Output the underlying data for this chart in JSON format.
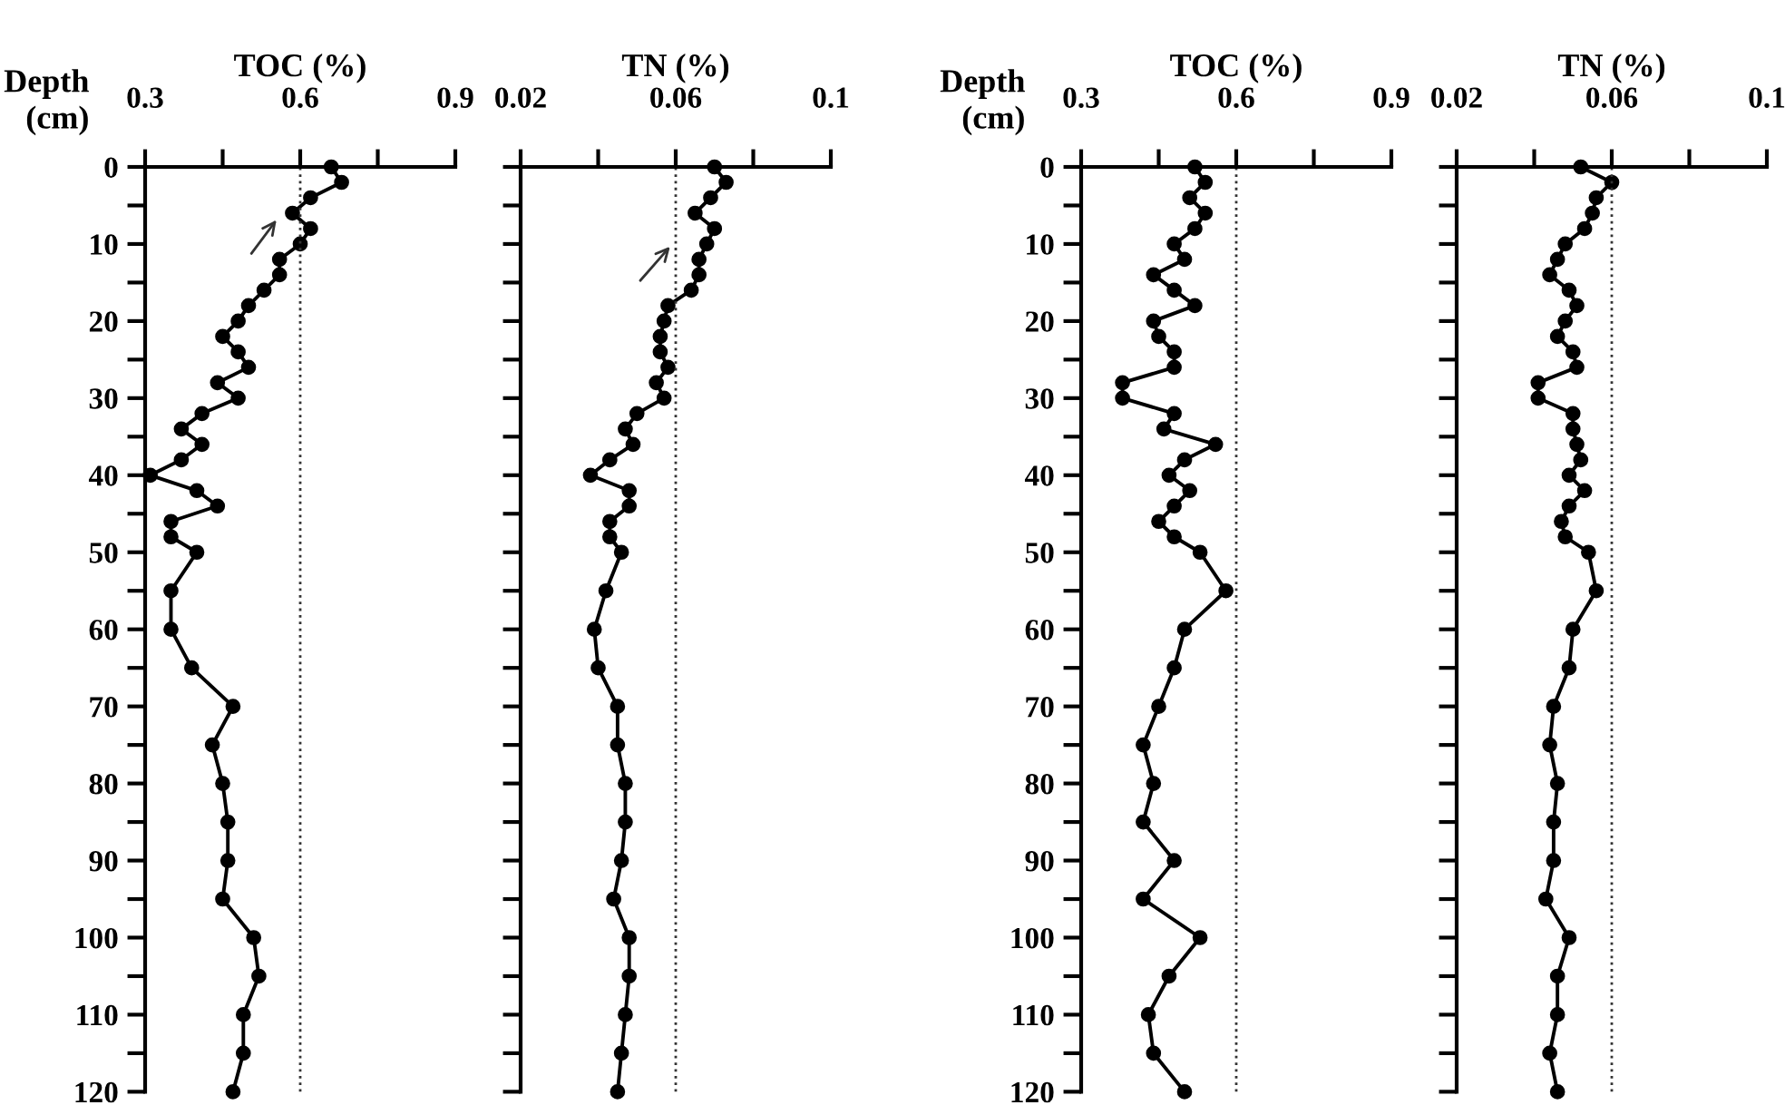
{
  "chart_data": [
    {
      "type": "line",
      "title": "TOC (%)",
      "ylabel": "Depth\n(cm)",
      "marker": "circle",
      "line_style": "solid",
      "grid": false,
      "legend": false,
      "xlim": [
        0.3,
        0.9
      ],
      "xticks": [
        0.3,
        {
          "value": 0.45,
          "label": null
        },
        0.6,
        {
          "value": 0.75,
          "label": null
        },
        0.9
      ],
      "ylim": [
        120,
        0
      ],
      "yticks": [
        0,
        {
          "value": 5,
          "label": null
        },
        10,
        {
          "value": 15,
          "label": null
        },
        20,
        {
          "value": 25,
          "label": null
        },
        30,
        {
          "value": 35,
          "label": null
        },
        40,
        {
          "value": 45,
          "label": null
        },
        50,
        {
          "value": 55,
          "label": null
        },
        60,
        {
          "value": 65,
          "label": null
        },
        70,
        {
          "value": 75,
          "label": null
        },
        80,
        {
          "value": 85,
          "label": null
        },
        90,
        {
          "value": 95,
          "label": null
        },
        100,
        {
          "value": 105,
          "label": null
        },
        110,
        {
          "value": 115,
          "label": null
        },
        120
      ],
      "ref_lines": [
        {
          "axis": "x",
          "value": 0.6,
          "line_style": "dotted",
          "color": "#333333"
        }
      ],
      "series": [
        {
          "color": "#000000",
          "x": [
            0.66,
            0.68,
            0.62,
            0.585,
            0.62,
            0.6,
            0.56,
            0.56,
            0.53,
            0.5,
            0.48,
            0.45,
            0.48,
            0.5,
            0.44,
            0.48,
            0.41,
            0.37,
            0.41,
            0.37,
            0.31,
            0.4,
            0.44,
            0.35,
            0.35,
            0.4,
            0.35,
            0.35,
            0.39,
            0.47,
            0.43,
            0.45,
            0.46,
            0.46,
            0.45,
            0.51,
            0.52,
            0.49,
            0.49,
            0.47
          ],
          "values": [
            0,
            2,
            4,
            6,
            8,
            10,
            12,
            14,
            16,
            18,
            20,
            22,
            24,
            26,
            28,
            30,
            32,
            34,
            36,
            38,
            40,
            42,
            44,
            46,
            48,
            50,
            55,
            60,
            65,
            70,
            75,
            80,
            85,
            90,
            95,
            100,
            105,
            110,
            115,
            120
          ]
        }
      ]
    },
    {
      "type": "line",
      "title": "TN (%)",
      "marker": "circle",
      "line_style": "solid",
      "grid": false,
      "legend": false,
      "tick_labels": "x",
      "xlim": [
        0.02,
        0.1
      ],
      "xticks": [
        0.02,
        {
          "value": 0.04,
          "label": null
        },
        0.06,
        {
          "value": 0.08,
          "label": null
        },
        0.1
      ],
      "ylim": [
        120,
        0
      ],
      "yticks": [
        0,
        5,
        10,
        15,
        20,
        25,
        30,
        35,
        40,
        45,
        50,
        55,
        60,
        65,
        70,
        75,
        80,
        85,
        90,
        95,
        100,
        105,
        110,
        115,
        120
      ],
      "ref_lines": [
        {
          "axis": "x",
          "value": 0.06,
          "line_style": "dotted",
          "color": "#333333"
        }
      ],
      "series": [
        {
          "color": "#000000",
          "x": [
            0.07,
            0.073,
            0.069,
            0.065,
            0.07,
            0.068,
            0.066,
            0.066,
            0.064,
            0.058,
            0.057,
            0.056,
            0.056,
            0.058,
            0.055,
            0.057,
            0.05,
            0.047,
            0.049,
            0.043,
            0.038,
            0.048,
            0.048,
            0.043,
            0.043,
            0.046,
            0.042,
            0.039,
            0.04,
            0.045,
            0.045,
            0.047,
            0.047,
            0.046,
            0.044,
            0.048,
            0.048,
            0.047,
            0.046,
            0.045
          ],
          "values": [
            0,
            2,
            4,
            6,
            8,
            10,
            12,
            14,
            16,
            18,
            20,
            22,
            24,
            26,
            28,
            30,
            32,
            34,
            36,
            38,
            40,
            42,
            44,
            46,
            48,
            50,
            55,
            60,
            65,
            70,
            75,
            80,
            85,
            90,
            95,
            100,
            105,
            110,
            115,
            120
          ]
        }
      ]
    },
    {
      "type": "line",
      "title": "TOC (%)",
      "ylabel": "Depth\n(cm)",
      "marker": "circle",
      "line_style": "solid",
      "grid": false,
      "legend": false,
      "xlim": [
        0.3,
        0.9
      ],
      "xticks": [
        0.3,
        {
          "value": 0.45,
          "label": null
        },
        0.6,
        {
          "value": 0.75,
          "label": null
        },
        0.9
      ],
      "ylim": [
        120,
        0
      ],
      "yticks": [
        0,
        {
          "value": 5,
          "label": null
        },
        10,
        {
          "value": 15,
          "label": null
        },
        20,
        {
          "value": 25,
          "label": null
        },
        30,
        {
          "value": 35,
          "label": null
        },
        40,
        {
          "value": 45,
          "label": null
        },
        50,
        {
          "value": 55,
          "label": null
        },
        60,
        {
          "value": 65,
          "label": null
        },
        70,
        {
          "value": 75,
          "label": null
        },
        80,
        {
          "value": 85,
          "label": null
        },
        90,
        {
          "value": 95,
          "label": null
        },
        100,
        {
          "value": 105,
          "label": null
        },
        110,
        {
          "value": 115,
          "label": null
        },
        120
      ],
      "ref_lines": [
        {
          "axis": "x",
          "value": 0.6,
          "line_style": "dotted",
          "color": "#333333"
        }
      ],
      "series": [
        {
          "color": "#000000",
          "x": [
            0.52,
            0.54,
            0.51,
            0.54,
            0.52,
            0.48,
            0.5,
            0.44,
            0.48,
            0.52,
            0.44,
            0.45,
            0.48,
            0.48,
            0.38,
            0.38,
            0.48,
            0.46,
            0.56,
            0.5,
            0.47,
            0.51,
            0.48,
            0.45,
            0.48,
            0.53,
            0.58,
            0.5,
            0.48,
            0.45,
            0.42,
            0.44,
            0.42,
            0.48,
            0.42,
            0.53,
            0.47,
            0.43,
            0.44,
            0.5
          ],
          "values": [
            0,
            2,
            4,
            6,
            8,
            10,
            12,
            14,
            16,
            18,
            20,
            22,
            24,
            26,
            28,
            30,
            32,
            34,
            36,
            38,
            40,
            42,
            44,
            46,
            48,
            50,
            55,
            60,
            65,
            70,
            75,
            80,
            85,
            90,
            95,
            100,
            105,
            110,
            115,
            120
          ]
        }
      ]
    },
    {
      "type": "line",
      "title": "TN (%)",
      "marker": "circle",
      "line_style": "solid",
      "grid": false,
      "legend": false,
      "tick_labels": "x",
      "xlim": [
        0.02,
        0.1
      ],
      "xticks": [
        0.02,
        {
          "value": 0.04,
          "label": null
        },
        0.06,
        {
          "value": 0.08,
          "label": null
        },
        0.1
      ],
      "ylim": [
        120,
        0
      ],
      "yticks": [
        0,
        5,
        10,
        15,
        20,
        25,
        30,
        35,
        40,
        45,
        50,
        55,
        60,
        65,
        70,
        75,
        80,
        85,
        90,
        95,
        100,
        105,
        110,
        115,
        120
      ],
      "ref_lines": [
        {
          "axis": "x",
          "value": 0.06,
          "line_style": "dotted",
          "color": "#333333"
        }
      ],
      "series": [
        {
          "color": "#000000",
          "x": [
            0.052,
            0.06,
            0.056,
            0.055,
            0.053,
            0.048,
            0.046,
            0.044,
            0.049,
            0.051,
            0.048,
            0.046,
            0.05,
            0.051,
            0.041,
            0.041,
            0.05,
            0.05,
            0.051,
            0.052,
            0.049,
            0.053,
            0.049,
            0.047,
            0.048,
            0.054,
            0.056,
            0.05,
            0.049,
            0.045,
            0.044,
            0.046,
            0.045,
            0.045,
            0.043,
            0.049,
            0.046,
            0.046,
            0.044,
            0.046
          ],
          "values": [
            0,
            2,
            4,
            6,
            8,
            10,
            12,
            14,
            16,
            18,
            20,
            22,
            24,
            26,
            28,
            30,
            32,
            34,
            36,
            38,
            40,
            42,
            44,
            46,
            48,
            50,
            55,
            60,
            65,
            70,
            75,
            80,
            85,
            90,
            95,
            100,
            105,
            110,
            115,
            120
          ]
        }
      ]
    }
  ]
}
